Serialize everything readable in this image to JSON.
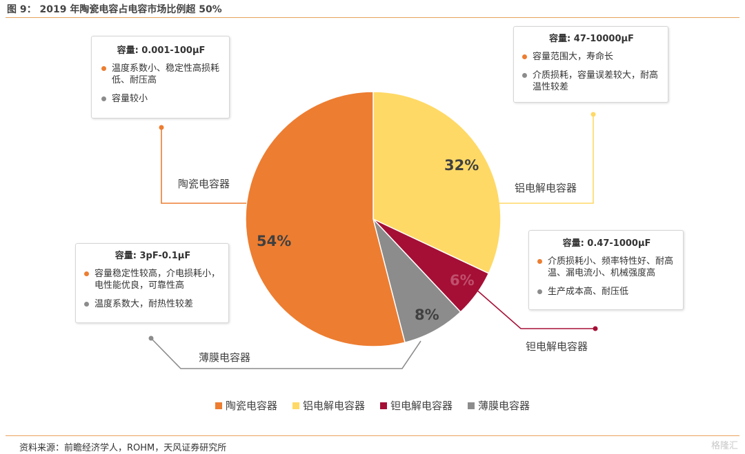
{
  "figure_title": "图 9： 2019 年陶瓷电容占电容市场比例超 50%",
  "source": "资料来源：前瞻经济学人，ROHM，天风证券研究所",
  "watermark": "格隆汇",
  "chart_data": {
    "type": "pie",
    "title": "",
    "categories": [
      "陶瓷电容器",
      "铝电解电容器",
      "钽电解电容器",
      "薄膜电容器"
    ],
    "values": [
      54,
      32,
      6,
      8
    ],
    "value_labels": [
      "54%",
      "32%",
      "6%",
      "8%"
    ],
    "colors": [
      "#ed7d31",
      "#ffd966",
      "#a50f35",
      "#8c8c8c"
    ],
    "legend_position": "bottom",
    "annotations": [
      {
        "series": "陶瓷电容器",
        "capacity": "容量: 0.001-100μF",
        "pros": "温度系数小、稳定性高损耗低、耐压高",
        "cons": "容量较小"
      },
      {
        "series": "铝电解电容器",
        "capacity": "容量: 47-10000μF",
        "pros": "容量范围大，寿命长",
        "cons": "介质损耗，容量误差较大，耐高温性较差"
      },
      {
        "series": "钽电解电容器",
        "capacity": "容量: 0.47-1000μF",
        "pros": "介质损耗小、频率特性好、耐高温、漏电流小、机械强度高",
        "cons": "生产成本高、耐压低"
      },
      {
        "series": "薄膜电容器",
        "capacity": "容量: 3pF-0.1μF",
        "pros": "容量稳定性较高，介电损耗小，电性能优良，可靠性高",
        "cons": "温度系数大，耐热性较差"
      }
    ]
  }
}
